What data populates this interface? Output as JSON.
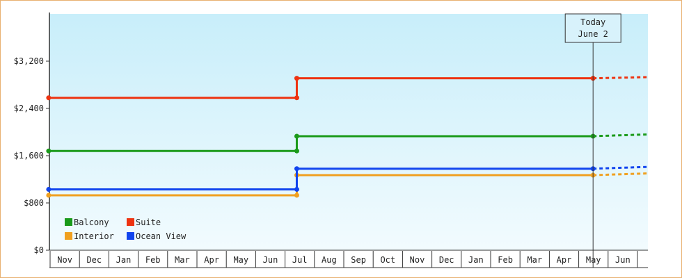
{
  "chart_data": {
    "type": "line",
    "step": true,
    "ylim": [
      0,
      4000
    ],
    "y_ticks": [
      0,
      800,
      1600,
      2400,
      3200
    ],
    "y_tick_labels": [
      "$0",
      "$800",
      "$1,600",
      "$2,400",
      "$3,200"
    ],
    "categories": [
      "Nov",
      "Dec",
      "Jan",
      "Feb",
      "Mar",
      "Apr",
      "May",
      "Jun",
      "Jul",
      "Aug",
      "Sep",
      "Oct",
      "Nov",
      "Dec",
      "Jan",
      "Feb",
      "Mar",
      "Apr",
      "May",
      "Jun"
    ],
    "series": [
      {
        "name": "Balcony",
        "color": "#1a9a1a",
        "before": 1680,
        "after": 1930,
        "change_month": 8,
        "end_month": 18.5,
        "projection_end": 1960
      },
      {
        "name": "Suite",
        "color": "#ee3311",
        "before": 2580,
        "after": 2910,
        "change_month": 8,
        "end_month": 18.5,
        "projection_end": 2930
      },
      {
        "name": "Interior",
        "color": "#f0a020",
        "before": 930,
        "after": 1270,
        "change_month": 8,
        "end_month": 18.5,
        "projection_end": 1300
      },
      {
        "name": "Ocean View",
        "color": "#1144ee",
        "before": 1030,
        "after": 1380,
        "change_month": 8,
        "end_month": 18.5,
        "projection_end": 1410
      }
    ],
    "today": {
      "line1": "Today",
      "line2": "June 2",
      "month_index": 18.5
    },
    "legend_position": "bottom-left",
    "grid": false
  }
}
